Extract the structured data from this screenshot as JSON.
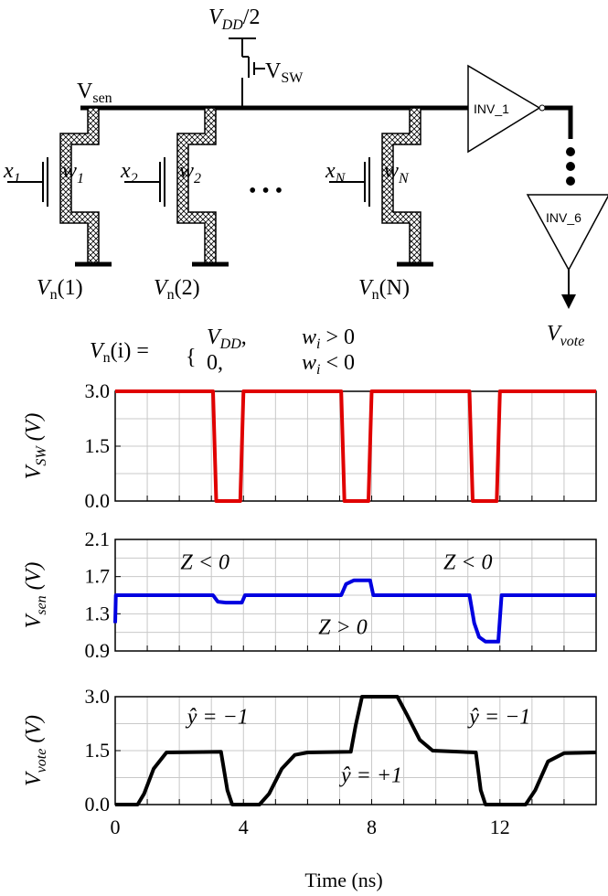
{
  "circuit": {
    "vdd_half": {
      "main": "V",
      "sub": "DD",
      "rest": "/2"
    },
    "vsw": {
      "main": "V",
      "sub": "SW"
    },
    "vsen": {
      "main": "V",
      "sub": "sen"
    },
    "inv1": "INV_1",
    "inv6": "INV_6",
    "vvote": {
      "main": "V",
      "sub": "vote"
    },
    "inputs": [
      {
        "x": "x",
        "x_sub": "1",
        "w": "w",
        "w_sub": "1",
        "vn": "V",
        "vn_sub": "n",
        "vn_arg": "(1)"
      },
      {
        "x": "x",
        "x_sub": "2",
        "w": "w",
        "w_sub": "2",
        "vn": "V",
        "vn_sub": "n",
        "vn_arg": "(2)"
      },
      {
        "x": "x",
        "x_sub": "N",
        "w": "w",
        "w_sub": "N",
        "vn": "V",
        "vn_sub": "n",
        "vn_arg": "(N)"
      }
    ],
    "ellipsis": "• • •",
    "equation": {
      "lhs_main": "V",
      "lhs_sub": "n",
      "lhs_arg": "(i) =",
      "case1_val_main": "V",
      "case1_val_sub": "DD",
      "case1_val_rest": ",",
      "case1_cond_main": "w",
      "case1_cond_sub": "i",
      "case1_cond_rest": " > 0",
      "case2_val": "0,",
      "case2_cond_main": "w",
      "case2_cond_sub": "i",
      "case2_cond_rest": " < 0"
    }
  },
  "waveforms": {
    "x_label": "Time (ns)",
    "x_ticks": [
      "0",
      "4",
      "8",
      "12"
    ],
    "x_tick_values": [
      0,
      4,
      8,
      12
    ],
    "x_range": [
      0,
      15
    ],
    "panels": [
      {
        "id": "vsw",
        "ylabel_main": "V",
        "ylabel_sub": "SW",
        "ylabel_unit": " (V)",
        "color": "#e00000",
        "y_range": [
          0,
          3.0
        ],
        "y_ticks": [
          "0.0",
          "1.5",
          "3.0"
        ],
        "y_tick_values": [
          0,
          1.5,
          3.0
        ],
        "points": [
          [
            0,
            3
          ],
          [
            3.05,
            3
          ],
          [
            3.15,
            0
          ],
          [
            3.9,
            0
          ],
          [
            4.0,
            3
          ],
          [
            7.05,
            3
          ],
          [
            7.15,
            0
          ],
          [
            7.9,
            0
          ],
          [
            8.0,
            3
          ],
          [
            11.05,
            3
          ],
          [
            11.15,
            0
          ],
          [
            11.9,
            0
          ],
          [
            12.0,
            3
          ],
          [
            15,
            3
          ]
        ]
      },
      {
        "id": "vsen",
        "ylabel_main": "V",
        "ylabel_sub": "sen",
        "ylabel_unit": " (V)",
        "color": "#0000e0",
        "y_range": [
          0.9,
          2.1
        ],
        "y_ticks": [
          "0.9",
          "1.3",
          "1.7",
          "2.1"
        ],
        "y_tick_values": [
          0.9,
          1.3,
          1.7,
          2.1
        ],
        "points": [
          [
            0,
            1.2
          ],
          [
            0.02,
            1.5
          ],
          [
            3.05,
            1.5
          ],
          [
            3.2,
            1.43
          ],
          [
            3.45,
            1.42
          ],
          [
            3.95,
            1.42
          ],
          [
            4.05,
            1.5
          ],
          [
            7.05,
            1.5
          ],
          [
            7.2,
            1.62
          ],
          [
            7.45,
            1.66
          ],
          [
            7.95,
            1.66
          ],
          [
            8.05,
            1.5
          ],
          [
            11.05,
            1.5
          ],
          [
            11.2,
            1.2
          ],
          [
            11.35,
            1.05
          ],
          [
            11.55,
            1.0
          ],
          [
            11.95,
            1.0
          ],
          [
            12.05,
            1.5
          ],
          [
            15,
            1.5
          ]
        ],
        "annotations": [
          "Z < 0",
          "Z > 0",
          "Z < 0"
        ]
      },
      {
        "id": "vvote",
        "ylabel_main": "V",
        "ylabel_sub": "vote",
        "ylabel_unit": " (V)",
        "color": "#000000",
        "y_range": [
          0,
          3.0
        ],
        "y_ticks": [
          "0.0",
          "1.5",
          "3.0"
        ],
        "y_tick_values": [
          0,
          1.5,
          3.0
        ],
        "points": [
          [
            0,
            0
          ],
          [
            0.7,
            0
          ],
          [
            0.9,
            0.3
          ],
          [
            1.2,
            1.0
          ],
          [
            1.6,
            1.45
          ],
          [
            3.3,
            1.47
          ],
          [
            3.5,
            0.4
          ],
          [
            3.65,
            0
          ],
          [
            4.5,
            0
          ],
          [
            4.8,
            0.3
          ],
          [
            5.2,
            1.0
          ],
          [
            5.6,
            1.38
          ],
          [
            6.0,
            1.45
          ],
          [
            7.35,
            1.47
          ],
          [
            7.5,
            2.2
          ],
          [
            7.7,
            3.0
          ],
          [
            8.8,
            3.0
          ],
          [
            9.1,
            2.5
          ],
          [
            9.5,
            1.8
          ],
          [
            9.9,
            1.5
          ],
          [
            11.25,
            1.45
          ],
          [
            11.4,
            0.4
          ],
          [
            11.55,
            0
          ],
          [
            12.8,
            0
          ],
          [
            13.1,
            0.4
          ],
          [
            13.5,
            1.2
          ],
          [
            14.0,
            1.43
          ],
          [
            15,
            1.45
          ]
        ],
        "annotations": [
          "ŷ = −1",
          "ŷ = +1",
          "ŷ = −1"
        ]
      }
    ]
  }
}
